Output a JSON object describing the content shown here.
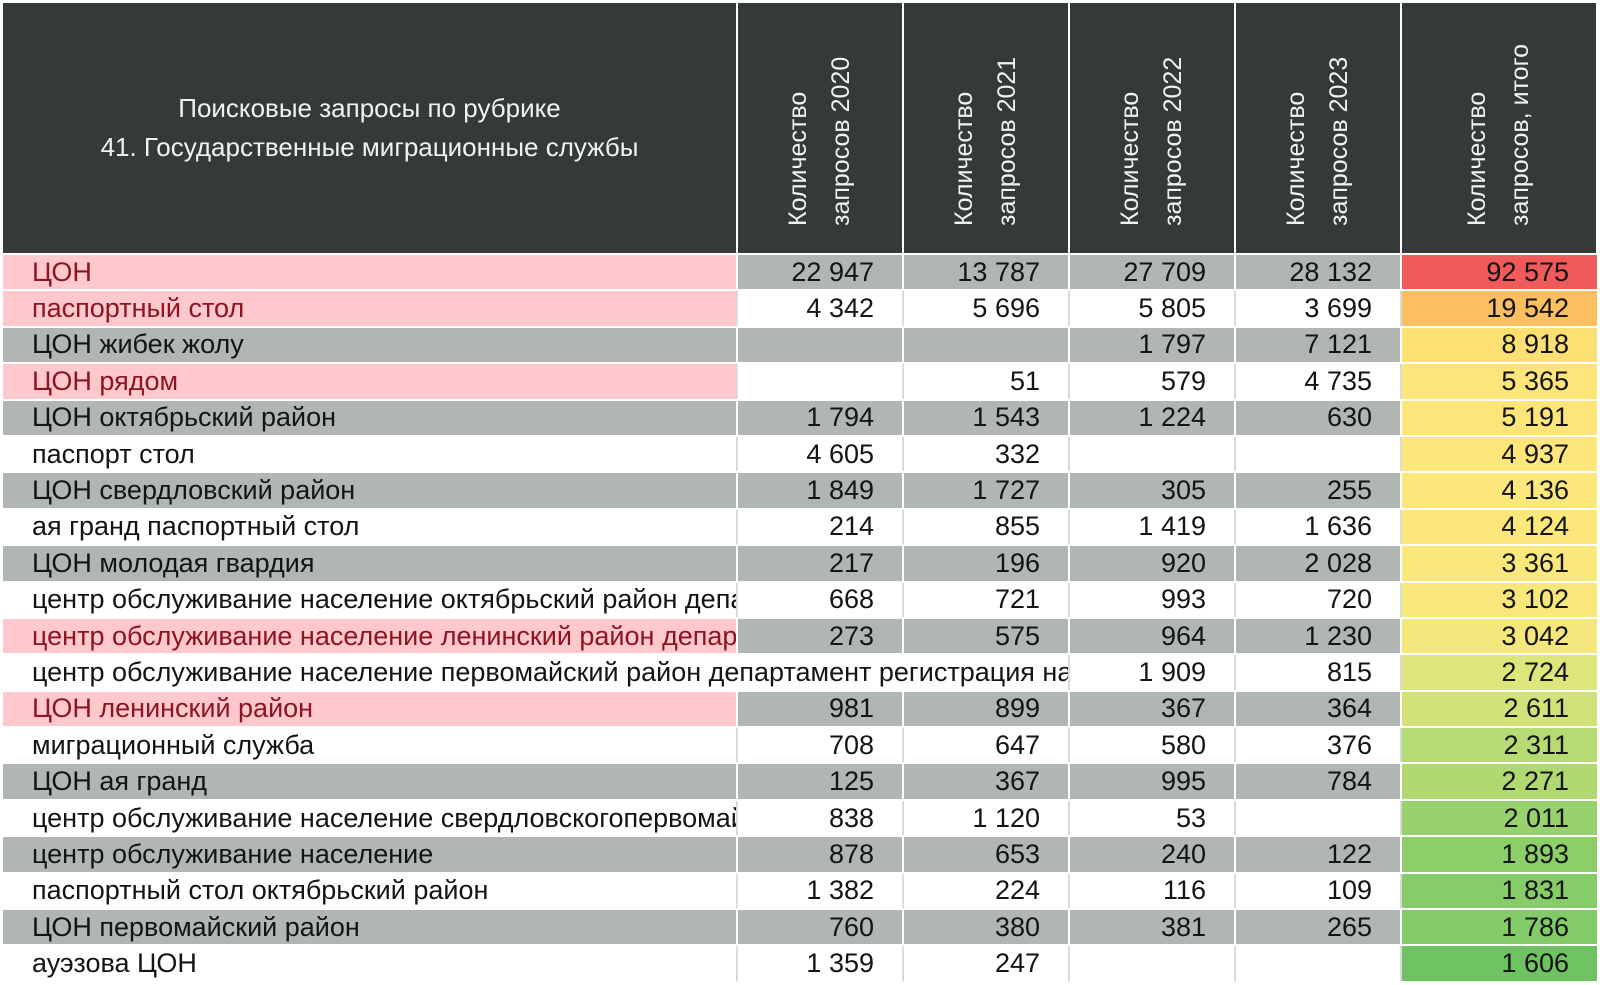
{
  "header": {
    "title_line1": "Поисковые запросы по рубрике",
    "title_line2": "41. Государственные миграционные службы",
    "columns": [
      "Количество\nзапросов 2020",
      "Количество\nзапросов 2021",
      "Количество\nзапросов 2022",
      "Количество\nзапросов 2023",
      "Количество\nзапросов, итого"
    ]
  },
  "colors": {
    "header_bg": "#343a38",
    "grey_row": "#b0b7b3",
    "highlight_bg": "#ffc8cd",
    "highlight_text": "#8b1520",
    "total_scale": [
      "#f05a5a",
      "#fbbf62",
      "#fde57a",
      "#d7e47a",
      "#8fd06c",
      "#67bf5e"
    ]
  },
  "rows": [
    {
      "query": "ЦОН",
      "y2020": "22 947",
      "y2021": "13 787",
      "y2022": "27 709",
      "y2023": "28 132",
      "total": "92 575",
      "highlight": true,
      "total_color": "#f05a5a"
    },
    {
      "query": "паспортный стол",
      "y2020": "4 342",
      "y2021": "5 696",
      "y2022": "5 805",
      "y2023": "3 699",
      "total": "19 542",
      "highlight": true,
      "total_color": "#fbbf62"
    },
    {
      "query": "ЦОН жибек жолу",
      "y2020": "",
      "y2021": "",
      "y2022": "1 797",
      "y2023": "7 121",
      "total": "8 918",
      "highlight": false,
      "total_color": "#fde074"
    },
    {
      "query": "ЦОН рядом",
      "y2020": "",
      "y2021": "51",
      "y2022": "579",
      "y2023": "4 735",
      "total": "5 365",
      "highlight": true,
      "total_color": "#fde57a"
    },
    {
      "query": "ЦОН октябрьский район",
      "y2020": "1 794",
      "y2021": "1 543",
      "y2022": "1 224",
      "y2023": "630",
      "total": "5 191",
      "highlight": false,
      "total_color": "#fde57a"
    },
    {
      "query": "паспорт стол",
      "y2020": "4 605",
      "y2021": "332",
      "y2022": "",
      "y2023": "",
      "total": "4 937",
      "highlight": false,
      "total_color": "#fde67b"
    },
    {
      "query": "ЦОН свердловский район",
      "y2020": "1 849",
      "y2021": "1 727",
      "y2022": "305",
      "y2023": "255",
      "total": "4 136",
      "highlight": false,
      "total_color": "#fce77c"
    },
    {
      "query": "ая гранд паспортный стол",
      "y2020": "214",
      "y2021": "855",
      "y2022": "1 419",
      "y2023": "1 636",
      "total": "4 124",
      "highlight": false,
      "total_color": "#fce77c"
    },
    {
      "query": "ЦОН молодая гвардия",
      "y2020": "217",
      "y2021": "196",
      "y2022": "920",
      "y2023": "2 028",
      "total": "3 361",
      "highlight": false,
      "total_color": "#fae87c"
    },
    {
      "query": "центр обслуживание население октябрьский район департам",
      "y2020": "668",
      "y2021": "721",
      "y2022": "993",
      "y2023": "720",
      "total": "3 102",
      "highlight": false,
      "total_color": "#f8e87c"
    },
    {
      "query": "центр обслуживание население ленинский район департаме",
      "y2020": "273",
      "y2021": "575",
      "y2022": "964",
      "y2023": "1 230",
      "total": "3 042",
      "highlight": true,
      "total_color": "#f5e77c"
    },
    {
      "query": "центр обслуживание население первомайский район департамент регистрация населени",
      "y2020": "",
      "y2021": "",
      "y2022": "1 909",
      "y2023": "815",
      "total": "2 724",
      "highlight": false,
      "total_color": "#dde67a",
      "wide": true
    },
    {
      "query": "ЦОН ленинский район",
      "y2020": "981",
      "y2021": "899",
      "y2022": "367",
      "y2023": "364",
      "total": "2 611",
      "highlight": true,
      "total_color": "#d2e278"
    },
    {
      "query": "миграционный служба",
      "y2020": "708",
      "y2021": "647",
      "y2022": "580",
      "y2023": "376",
      "total": "2 311",
      "highlight": false,
      "total_color": "#b5db72"
    },
    {
      "query": "ЦОН ая гранд",
      "y2020": "125",
      "y2021": "367",
      "y2022": "995",
      "y2023": "784",
      "total": "2 271",
      "highlight": false,
      "total_color": "#b1d971"
    },
    {
      "query": "центр обслуживание население свердловскогопервомайский",
      "y2020": "838",
      "y2021": "1 120",
      "y2022": "53",
      "y2023": "",
      "total": "2 011",
      "highlight": false,
      "total_color": "#98d26c"
    },
    {
      "query": "центр обслуживание население",
      "y2020": "878",
      "y2021": "653",
      "y2022": "240",
      "y2023": "122",
      "total": "1 893",
      "highlight": false,
      "total_color": "#8ccf6a"
    },
    {
      "query": "паспортный стол октябрьский район",
      "y2020": "1 382",
      "y2021": "224",
      "y2022": "116",
      "y2023": "109",
      "total": "1 831",
      "highlight": false,
      "total_color": "#86cd69"
    },
    {
      "query": "ЦОН первомайский район",
      "y2020": "760",
      "y2021": "380",
      "y2022": "381",
      "y2023": "265",
      "total": "1 786",
      "highlight": false,
      "total_color": "#82cb68"
    },
    {
      "query": "ауэзова ЦОН",
      "y2020": "1 359",
      "y2021": "247",
      "y2022": "",
      "y2023": "",
      "total": "1 606",
      "highlight": false,
      "total_color": "#6fc262"
    }
  ]
}
